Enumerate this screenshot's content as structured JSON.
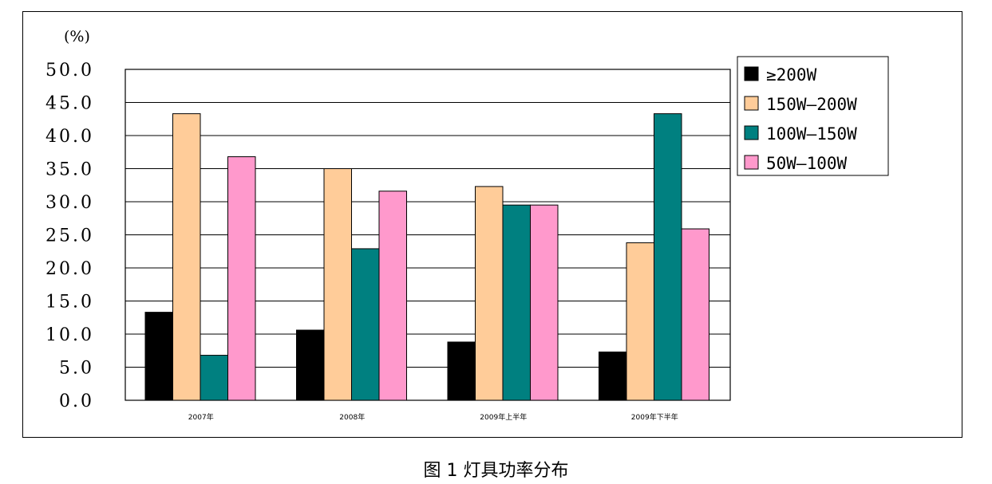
{
  "chart_data": {
    "type": "bar",
    "title": "",
    "ylabel": "(%)",
    "xlabel": "",
    "ylim": [
      0,
      50
    ],
    "yticks": [
      "0.0",
      "5.0",
      "10.0",
      "15.0",
      "20.0",
      "25.0",
      "30.0",
      "35.0",
      "40.0",
      "45.0",
      "50.0"
    ],
    "categories": [
      "2007年",
      "2008年",
      "2009年上半年",
      "2009年下半年"
    ],
    "grid": true,
    "legend_position": "top-right",
    "series": [
      {
        "name": "≥200W",
        "color": "#000000",
        "values": [
          13.3,
          10.6,
          8.8,
          7.3
        ]
      },
      {
        "name": "150W—200W",
        "color": "#FFCC99",
        "values": [
          43.3,
          35.0,
          32.3,
          23.8
        ]
      },
      {
        "name": "100W—150W",
        "color": "#008080",
        "values": [
          6.8,
          22.9,
          29.5,
          43.3
        ]
      },
      {
        "name": "50W—100W",
        "color": "#FF99CC",
        "values": [
          36.8,
          31.6,
          29.5,
          25.9
        ]
      }
    ]
  },
  "caption": "图 1  灯具功率分布"
}
